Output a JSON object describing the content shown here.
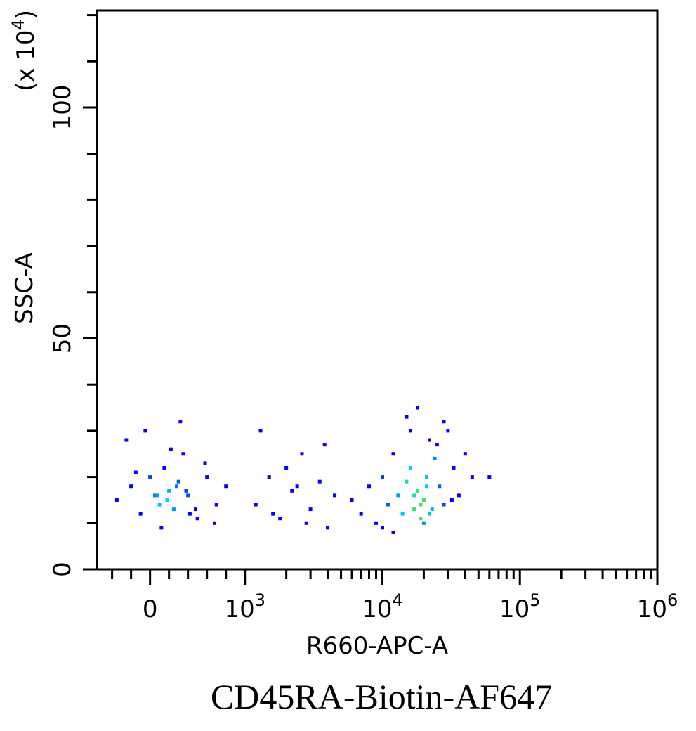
{
  "chart_data": {
    "type": "scatter",
    "caption": "CD45RA-Biotin-AF647",
    "x_label": "R660-APC-A",
    "y_label": "SSC-A",
    "y_scale_label": [
      "(x 10",
      "4",
      ")"
    ],
    "x_scale": "biexponential",
    "xlim": [
      -560,
      1000000
    ],
    "ylim": [
      0,
      121
    ],
    "xticks": [
      0,
      {
        "value": 1000,
        "label": "10",
        "exponent": "3"
      },
      {
        "value": 10000,
        "label": "10",
        "exponent": "4"
      },
      {
        "value": 100000,
        "label": "10",
        "exponent": "5"
      },
      {
        "value": 1000000,
        "label": "10",
        "exponent": "6"
      }
    ],
    "xminor": [
      -400,
      -200,
      200,
      400,
      600,
      800,
      2000,
      3000,
      4000,
      5000,
      6000,
      7000,
      8000,
      9000,
      20000,
      30000,
      40000,
      50000,
      60000,
      70000,
      80000,
      90000,
      200000,
      300000,
      400000,
      500000,
      600000,
      700000,
      800000,
      900000
    ],
    "yticks": [
      0,
      50,
      100
    ],
    "yminor": [
      10,
      20,
      30,
      40,
      60,
      70,
      80,
      90,
      110,
      120
    ],
    "x": [
      -350,
      -200,
      -100,
      0,
      50,
      100,
      150,
      200,
      250,
      300,
      350,
      400,
      500,
      600,
      700,
      800,
      -250,
      -50,
      120,
      220,
      320,
      420,
      -150,
      80,
      180,
      280,
      380,
      480,
      580,
      680,
      1200,
      1500,
      1800,
      2200,
      2600,
      3000,
      3500,
      4000,
      4500,
      1300,
      2000,
      2800,
      3800,
      1600,
      2400,
      6000,
      7000,
      8000,
      9000,
      10000,
      11000,
      12000,
      13000,
      14000,
      15000,
      16000,
      17000,
      18000,
      19000,
      20000,
      21000,
      22000,
      24000,
      26000,
      28000,
      30000,
      33000,
      36000,
      40000,
      45000,
      15000,
      18000,
      20000,
      22000,
      25000,
      17000,
      19000,
      21000,
      23000,
      12000,
      28000,
      32000,
      10000,
      16000,
      60000
    ],
    "values": [
      15,
      18,
      12,
      20,
      16,
      14,
      22,
      17,
      13,
      19,
      25,
      16,
      11,
      20,
      14,
      18,
      28,
      30,
      9,
      26,
      32,
      12,
      21,
      16,
      15,
      18,
      17,
      13,
      23,
      10,
      14,
      20,
      11,
      17,
      25,
      13,
      19,
      9,
      16,
      30,
      22,
      10,
      27,
      12,
      18,
      15,
      12,
      18,
      10,
      20,
      14,
      25,
      16,
      12,
      19,
      22,
      13,
      17,
      11,
      15,
      20,
      28,
      24,
      18,
      14,
      30,
      22,
      16,
      25,
      20,
      33,
      35,
      10,
      12,
      27,
      16,
      14,
      18,
      13,
      8,
      32,
      15,
      9,
      30,
      20
    ],
    "point_colors": [
      "#0000ff",
      "#0000ff",
      "#0000ff",
      "#0040ff",
      "#0080ff",
      "#00c0ff",
      "#0000ff",
      "#00b0ff",
      "#0090ff",
      "#0060ff",
      "#0000ff",
      "#0050ff",
      "#0000ff",
      "#0000ff",
      "#0000ff",
      "#0000ff",
      "#0000ff",
      "#0000ff",
      "#0000ff",
      "#0000ff",
      "#0000ff",
      "#0000ff",
      "#0000ff",
      "#00a0ff",
      "#00d0ff",
      "#0070ff",
      "#0040ff",
      "#0000ff",
      "#0000ff",
      "#0000ff",
      "#0000ff",
      "#0000ff",
      "#0000ff",
      "#0000ff",
      "#0000ff",
      "#0000ff",
      "#0000ff",
      "#0000ff",
      "#0000ff",
      "#0000ff",
      "#0000ff",
      "#0000ff",
      "#0000ff",
      "#0000ff",
      "#0000ff",
      "#0000ff",
      "#0000ff",
      "#0000ff",
      "#0000ff",
      "#0040ff",
      "#0060ff",
      "#0000ff",
      "#00a0ff",
      "#00c0ff",
      "#20e0a0",
      "#00d0ff",
      "#40e060",
      "#30e080",
      "#60e040",
      "#40e060",
      "#00c0ff",
      "#0000ff",
      "#0080ff",
      "#0060ff",
      "#0040ff",
      "#0000ff",
      "#0000ff",
      "#0000ff",
      "#0000ff",
      "#0000ff",
      "#0000ff",
      "#0000ff",
      "#0080ff",
      "#00c0ff",
      "#0000ff",
      "#20e0a0",
      "#40e060",
      "#00d0ff",
      "#00b0ff",
      "#0000ff",
      "#0000ff",
      "#0000ff",
      "#0000ff",
      "#0000ff",
      "#0000ff"
    ]
  }
}
